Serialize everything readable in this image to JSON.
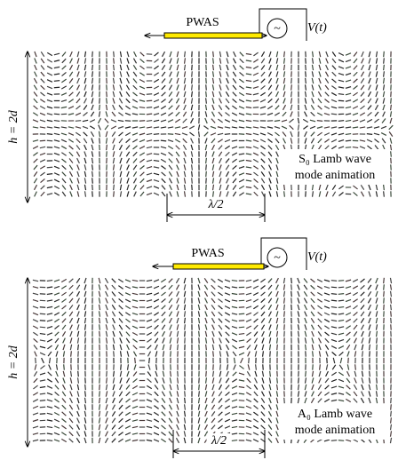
{
  "panels": [
    {
      "actuator_label": "PWAS",
      "source_symbol": "~",
      "source_label": "V(t)",
      "thickness_label": "h = 2d",
      "mode_label": "S₀ Lamb wave",
      "caption": "mode animation",
      "wavelength_label": "λ/2"
    },
    {
      "actuator_label": "PWAS",
      "source_symbol": "~",
      "source_label": "V(t)",
      "thickness_label": "h = 2d",
      "mode_label": "A₀ Lamb wave",
      "caption": "mode animation",
      "wavelength_label": "λ/2"
    }
  ]
}
